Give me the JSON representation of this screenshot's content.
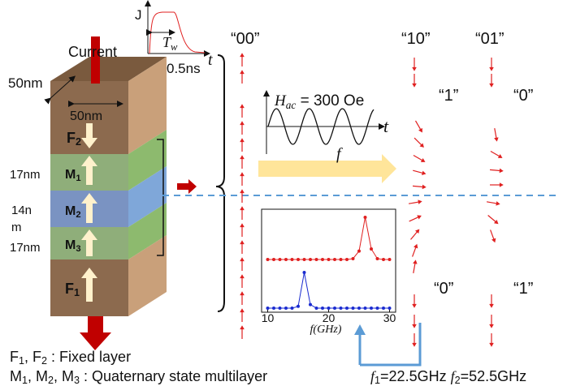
{
  "block": {
    "current": "Current",
    "width_top": "50nm",
    "width_front": "50nm",
    "layers": [
      {
        "name": "F",
        "sub": "2"
      },
      {
        "name": "M",
        "sub": "1"
      },
      {
        "name": "M",
        "sub": "2"
      },
      {
        "name": "M",
        "sub": "3"
      },
      {
        "name": "F",
        "sub": "1"
      }
    ],
    "thickness": [
      "17nm",
      "14n",
      "m",
      "17nm"
    ]
  },
  "pulse": {
    "y_label": "J",
    "width": "T",
    "width_sub": "w",
    "duration": "0.5ns",
    "x_label": "t"
  },
  "states": {
    "labels": [
      "“00”",
      "“10”",
      "“01”"
    ],
    "bits": [
      "“1”",
      "“0”",
      "“0”",
      "“1”"
    ]
  },
  "field": {
    "label": "H",
    "sub": "ac",
    "value": " = 300 Oe",
    "x_label": "t",
    "freq": "f"
  },
  "inset": {
    "type": "line",
    "x": [
      10,
      11,
      12,
      13,
      14,
      15,
      16,
      17,
      18,
      19,
      20,
      21,
      22,
      23,
      24,
      25,
      26,
      27,
      28,
      29,
      30
    ],
    "series": [
      {
        "color": "#e02020",
        "values": [
          0,
          0,
          0,
          0,
          0,
          0,
          0,
          0,
          0,
          0,
          0,
          0,
          0,
          0,
          0.02,
          0.2,
          1,
          0.25,
          0.02,
          0,
          0
        ]
      },
      {
        "color": "#1a2bd0",
        "values": [
          0,
          0,
          0,
          0,
          0,
          0.05,
          1,
          0.1,
          0,
          0,
          0,
          0,
          0,
          0,
          0,
          0,
          0,
          0,
          0,
          0,
          0
        ]
      }
    ],
    "xlim": [
      9,
      31
    ],
    "xticks": [
      10,
      20,
      30
    ],
    "xlabel": "f(GHz)"
  },
  "notes": [
    [
      "F",
      "1",
      ", F",
      "2",
      " : Fixed layer"
    ],
    [
      "M",
      "1",
      ", M",
      "2",
      ", M",
      "3",
      " : Quaternary state multilayer"
    ],
    [
      "f",
      "1",
      "=22.5GHz ",
      "f",
      "2",
      "=52.5GHz"
    ]
  ]
}
